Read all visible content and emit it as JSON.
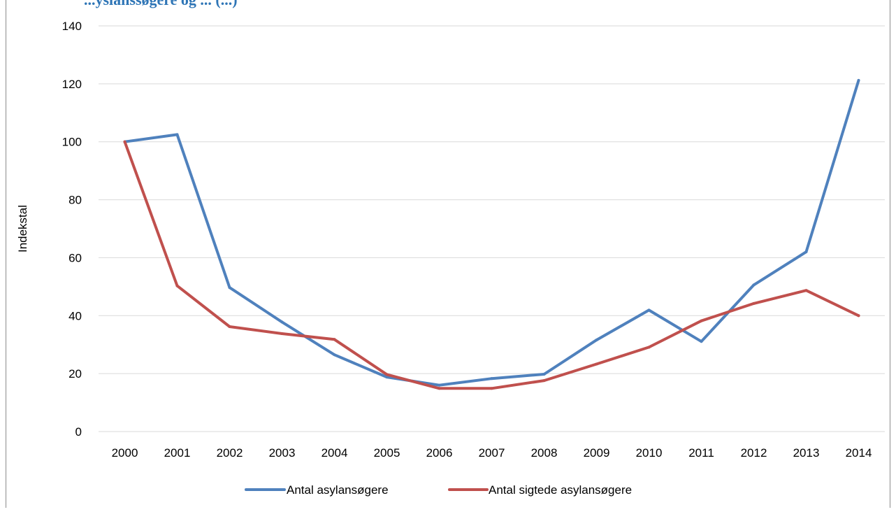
{
  "chart_data": {
    "type": "line",
    "title_partial": "...yslanssøgere og ... (...)",
    "xlabel": "",
    "ylabel": "Indekstal",
    "ylim": [
      0,
      140
    ],
    "y_ticks": [
      0,
      20,
      40,
      60,
      80,
      100,
      120,
      140
    ],
    "categories": [
      "2000",
      "2001",
      "2002",
      "2003",
      "2004",
      "2005",
      "2006",
      "2007",
      "2008",
      "2009",
      "2010",
      "2011",
      "2012",
      "2013",
      "2014"
    ],
    "grid": "horizontal",
    "legend_position": "bottom",
    "series": [
      {
        "name": "Antal asylansøgere",
        "color": "#4f81bd",
        "values": [
          100,
          102.5,
          49.7,
          37.8,
          26.5,
          18.8,
          16,
          18.3,
          19.8,
          31.6,
          41.9,
          31.1,
          50.6,
          62,
          121.2
        ]
      },
      {
        "name": "Antal sigtede asylansøgere",
        "color": "#c0504d",
        "values": [
          100,
          50.3,
          36.2,
          33.8,
          31.8,
          19.7,
          14.9,
          14.9,
          17.6,
          23.3,
          29.1,
          38.2,
          44.2,
          48.7,
          40
        ]
      }
    ]
  }
}
